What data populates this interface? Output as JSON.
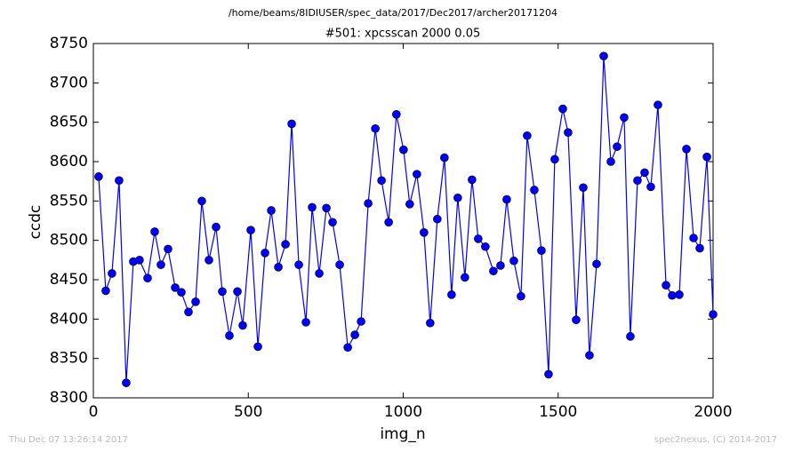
{
  "chart_data": {
    "type": "line",
    "suptitle": "/home/beams/8IDIUSER/spec_data/2017/Dec2017/archer20171204",
    "title": "#501: xpcsscan 2000 0.05",
    "x_label": "img_n",
    "y_label": "ccdc",
    "footer_left": "Thu Dec 07 13:26:14 2017",
    "footer_right": "spec2nexus, (C) 2014-2017",
    "color": "#0000ff",
    "marker": "circle",
    "x": [
      17,
      40,
      60,
      83,
      106,
      129,
      149,
      175,
      198,
      218,
      241,
      264,
      284,
      307,
      330,
      350,
      373,
      396,
      416,
      439,
      465,
      482,
      508,
      531,
      554,
      574,
      597,
      620,
      640,
      663,
      686,
      706,
      729,
      752,
      772,
      795,
      821,
      844,
      864,
      887,
      910,
      930,
      953,
      978,
      1001,
      1021,
      1044,
      1067,
      1087,
      1110,
      1133,
      1156,
      1176,
      1199,
      1222,
      1242,
      1265,
      1291,
      1314,
      1334,
      1357,
      1380,
      1400,
      1423,
      1446,
      1469,
      1489,
      1515,
      1532,
      1558,
      1581,
      1601,
      1624,
      1647,
      1670,
      1690,
      1713,
      1733,
      1756,
      1779,
      1799,
      1822,
      1848,
      1868,
      1891,
      1914,
      1937,
      1957,
      1980,
      2000
    ],
    "values": [
      8581,
      8436,
      8458,
      8576,
      8319,
      8473,
      8475,
      8452,
      8511,
      8469,
      8489,
      8440,
      8434,
      8409,
      8422,
      8550,
      8475,
      8517,
      8435,
      8379,
      8435,
      8392,
      8513,
      8365,
      8484,
      8538,
      8466,
      8495,
      8648,
      8469,
      8396,
      8542,
      8458,
      8541,
      8523,
      8469,
      8364,
      8380,
      8397,
      8547,
      8642,
      8576,
      8523,
      8660,
      8615,
      8546,
      8584,
      8510,
      8395,
      8527,
      8605,
      8431,
      8554,
      8453,
      8577,
      8502,
      8492,
      8461,
      8468,
      8552,
      8474,
      8429,
      8633,
      8564,
      8487,
      8330,
      8603,
      8667,
      8637,
      8399,
      8567,
      8354,
      8470,
      8734,
      8600,
      8619,
      8656,
      8378,
      8576,
      8586,
      8568,
      8672,
      8443,
      8430,
      8431,
      8616,
      8503,
      8490,
      8606,
      8406
    ],
    "xlim": [
      0,
      2000
    ],
    "xticks": [
      0,
      500,
      1000,
      1500,
      2000
    ],
    "ylim": [
      8300,
      8750
    ],
    "yticks": [
      8300,
      8350,
      8400,
      8450,
      8500,
      8550,
      8600,
      8650,
      8700,
      8750
    ]
  }
}
